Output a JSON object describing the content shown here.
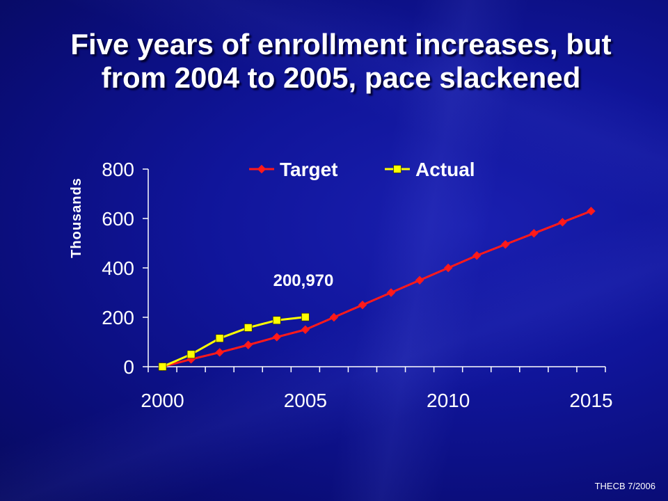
{
  "title": {
    "line1": "Five years of enrollment increases, but",
    "line2": "from 2004 to 2005, pace slackened"
  },
  "footer": "THECB 7/2006",
  "colors": {
    "target": "#ff1a1a",
    "actual": "#ffff00",
    "text": "#ffffff",
    "axis": "#ffffff"
  },
  "chart_data": {
    "type": "line",
    "title": "",
    "xlabel": "",
    "ylabel": "Thousands",
    "xlim": [
      2000,
      2015
    ],
    "ylim": [
      0,
      800
    ],
    "x_ticks": [
      2000,
      2005,
      2010,
      2015
    ],
    "y_ticks": [
      0,
      200,
      400,
      600,
      800
    ],
    "grid": false,
    "legend_position": "top",
    "annotation": "200,970",
    "series": [
      {
        "name": "Target",
        "marker": "diamond",
        "x": [
          2000,
          2001,
          2002,
          2003,
          2004,
          2005,
          2006,
          2007,
          2008,
          2009,
          2010,
          2011,
          2012,
          2013,
          2014,
          2015
        ],
        "y": [
          0,
          30,
          58,
          88,
          120,
          150,
          200,
          250,
          300,
          350,
          400,
          450,
          495,
          540,
          585,
          630
        ]
      },
      {
        "name": "Actual",
        "marker": "square",
        "x": [
          2000,
          2001,
          2002,
          2003,
          2004,
          2005
        ],
        "y": [
          0,
          50,
          115,
          158,
          188,
          201
        ]
      }
    ]
  }
}
